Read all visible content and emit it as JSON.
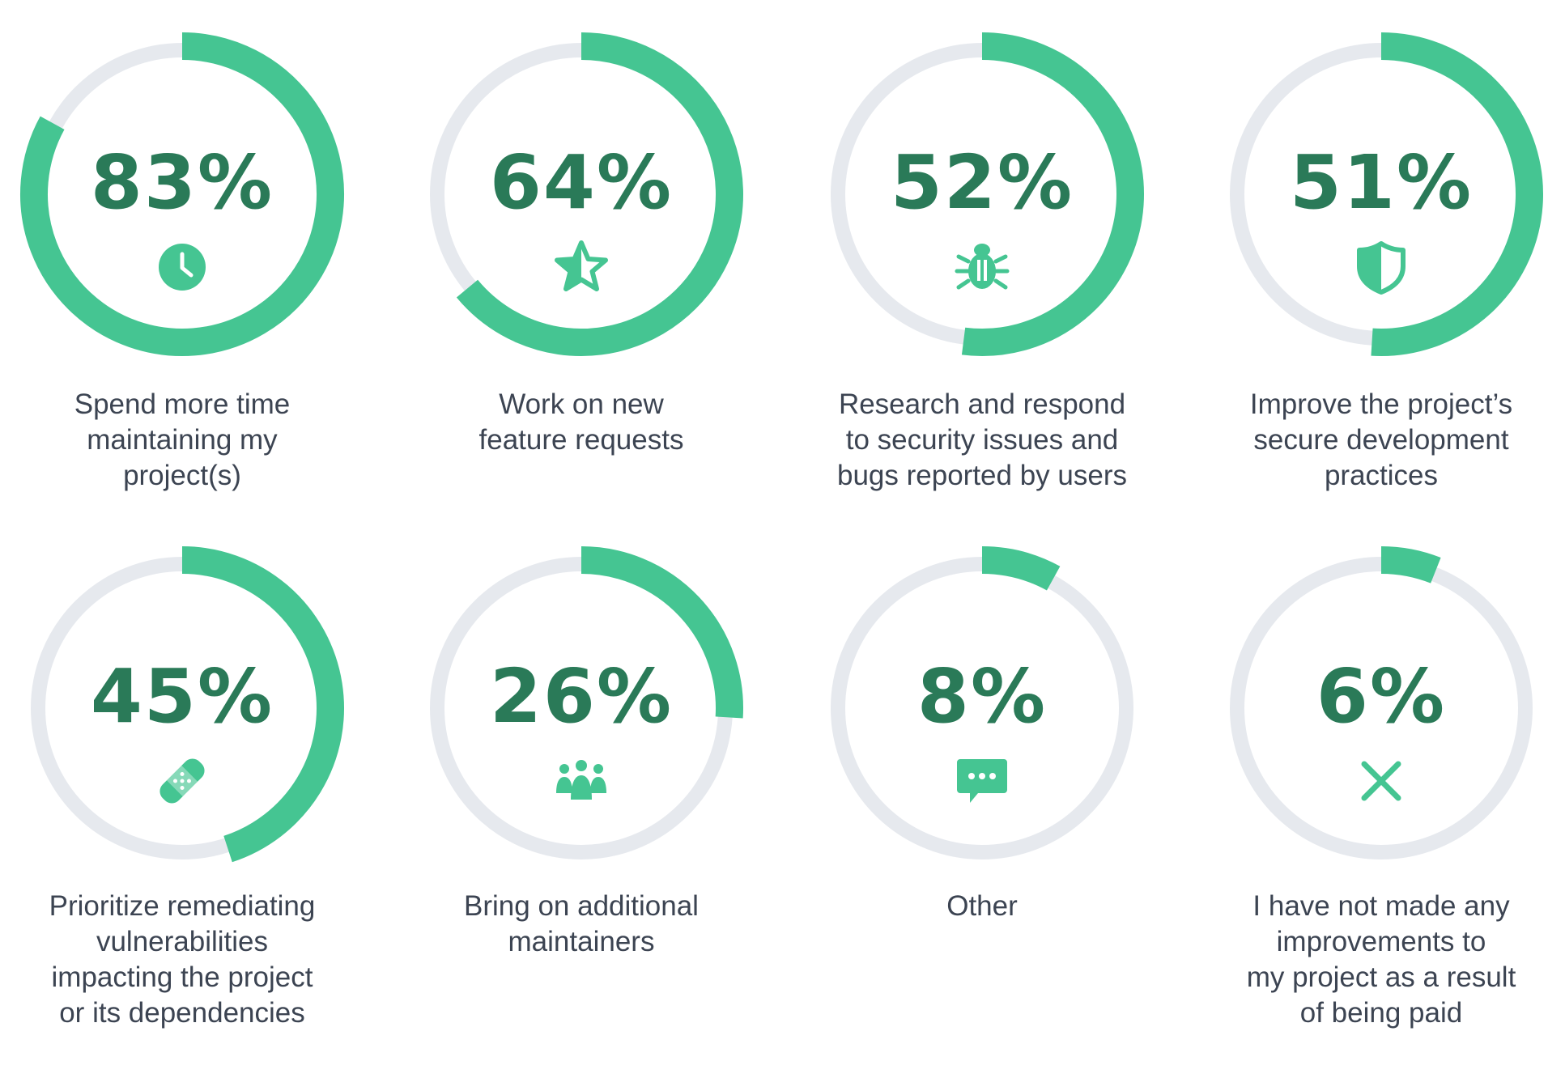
{
  "chart_data": {
    "type": "donut",
    "colors": {
      "filled": "#45c592",
      "track": "#e6e9ee",
      "value_text": "#2a7a58",
      "label_text": "#3c4452"
    },
    "items": [
      {
        "percent": "83%",
        "value": 83,
        "icon": "clock-icon",
        "label": "Spend more time\nmaintaining my\nproject(s)"
      },
      {
        "percent": "64%",
        "value": 64,
        "icon": "star-icon",
        "label": "Work on new\nfeature requests"
      },
      {
        "percent": "52%",
        "value": 52,
        "icon": "bug-icon",
        "label": "Research and respond\nto security issues and\nbugs reported by users"
      },
      {
        "percent": "51%",
        "value": 51,
        "icon": "shield-icon",
        "label": "Improve the project’s\nsecure development\npractices"
      },
      {
        "percent": "45%",
        "value": 45,
        "icon": "bandage-icon",
        "label": "Prioritize remediating\nvulnerabilities\nimpacting the project\nor its dependencies"
      },
      {
        "percent": "26%",
        "value": 26,
        "icon": "people-icon",
        "label": "Bring on additional\nmaintainers"
      },
      {
        "percent": "8%",
        "value": 8,
        "icon": "chat-icon",
        "label": "Other"
      },
      {
        "percent": "6%",
        "value": 6,
        "icon": "x-icon",
        "label": "I have not made any\nimprovements to\nmy project as a result\nof being paid"
      }
    ]
  }
}
